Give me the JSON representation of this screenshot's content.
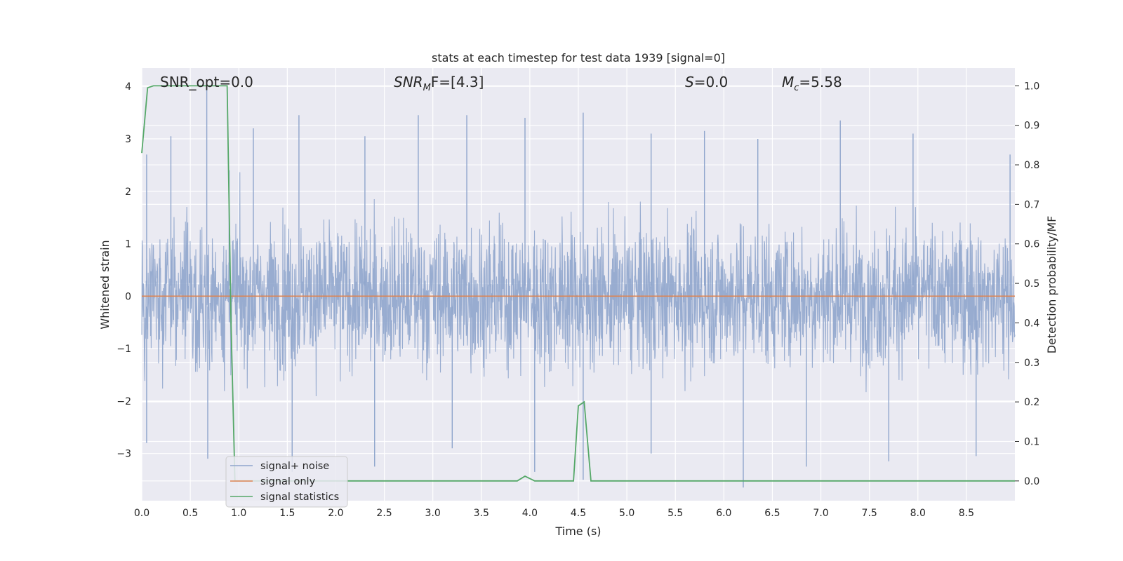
{
  "chart_data": {
    "type": "line",
    "title": "stats at each timestep for test data 1939 [signal=0]",
    "xlabel": "Time (s)",
    "ylabel_left": "Whitened strain",
    "ylabel_right": "Detection probability/MF",
    "xlim": [
      0.0,
      9.0
    ],
    "ylim_left": [
      -3.9,
      4.35
    ],
    "ylim_right": [
      -0.05,
      1.045
    ],
    "x_ticks": [
      "0.0",
      "0.5",
      "1.0",
      "1.5",
      "2.0",
      "2.5",
      "3.0",
      "3.5",
      "4.0",
      "4.5",
      "5.0",
      "5.5",
      "6.0",
      "6.5",
      "7.0",
      "7.5",
      "8.0",
      "8.5"
    ],
    "y_left_ticks": [
      "4",
      "3",
      "2",
      "1",
      "0",
      "−1",
      "−2",
      "−3"
    ],
    "y_right_ticks": [
      "1.0",
      "0.9",
      "0.8",
      "0.7",
      "0.6",
      "0.5",
      "0.4",
      "0.3",
      "0.2",
      "0.1",
      "0.0"
    ],
    "grid": true,
    "legend_position": "lower-left",
    "annotations": {
      "snr_opt": "SNR_opt=0.0",
      "snr_mf_base": "SNR",
      "snr_mf_sub": "M",
      "snr_mf_rest": "F=[4.3]",
      "s_label": "S",
      "s_rest": "=0.0",
      "mc_base": "M",
      "mc_sub": "c",
      "mc_rest": "=5.58"
    },
    "series": [
      {
        "name": "signal+ noise",
        "color": "#8fa5cc",
        "axis": "left",
        "description_values": "dense gaussian-like noise, typical band -2..2, peaks up to about 3.6 and troughs to about -3.6",
        "envelope_peaks": [
          [
            0.05,
            2.7
          ],
          [
            0.3,
            3.05
          ],
          [
            0.67,
            4.0
          ],
          [
            0.9,
            2.4
          ],
          [
            1.15,
            3.2
          ],
          [
            1.62,
            3.45
          ],
          [
            2.3,
            3.05
          ],
          [
            2.85,
            3.45
          ],
          [
            3.35,
            3.45
          ],
          [
            3.95,
            3.4
          ],
          [
            4.55,
            3.5
          ],
          [
            5.25,
            3.1
          ],
          [
            5.8,
            3.15
          ],
          [
            6.35,
            3.0
          ],
          [
            7.2,
            3.35
          ],
          [
            7.95,
            3.1
          ],
          [
            8.95,
            2.7
          ]
        ],
        "envelope_troughs": [
          [
            0.05,
            -2.8
          ],
          [
            0.68,
            -3.1
          ],
          [
            1.55,
            -3.35
          ],
          [
            2.4,
            -3.25
          ],
          [
            3.2,
            -2.9
          ],
          [
            4.05,
            -3.35
          ],
          [
            4.55,
            -3.5
          ],
          [
            5.25,
            -3.0
          ],
          [
            6.2,
            -3.65
          ],
          [
            6.85,
            -3.25
          ],
          [
            7.7,
            -3.15
          ],
          [
            8.6,
            -3.05
          ]
        ]
      },
      {
        "name": "signal only",
        "color": "#dd8452",
        "axis": "left",
        "x": [
          0.0,
          9.0
        ],
        "y": [
          0.0,
          0.0
        ]
      },
      {
        "name": "signal statistics",
        "color": "#55a868",
        "axis": "right",
        "x": [
          0.0,
          0.06,
          0.12,
          0.4,
          0.7,
          0.88,
          0.92,
          0.96,
          1.2,
          2.0,
          3.0,
          3.87,
          3.95,
          4.05,
          4.2,
          4.45,
          4.5,
          4.56,
          4.63,
          5.0,
          6.0,
          7.0,
          8.0,
          9.0
        ],
        "y": [
          0.83,
          0.995,
          1.0,
          1.0,
          1.0,
          1.0,
          0.4,
          0.0,
          0.0,
          0.0,
          0.0,
          0.0,
          0.012,
          0.0,
          0.0,
          0.0,
          0.19,
          0.2,
          0.0,
          0.0,
          0.0,
          0.0,
          0.0,
          0.0
        ]
      }
    ]
  }
}
